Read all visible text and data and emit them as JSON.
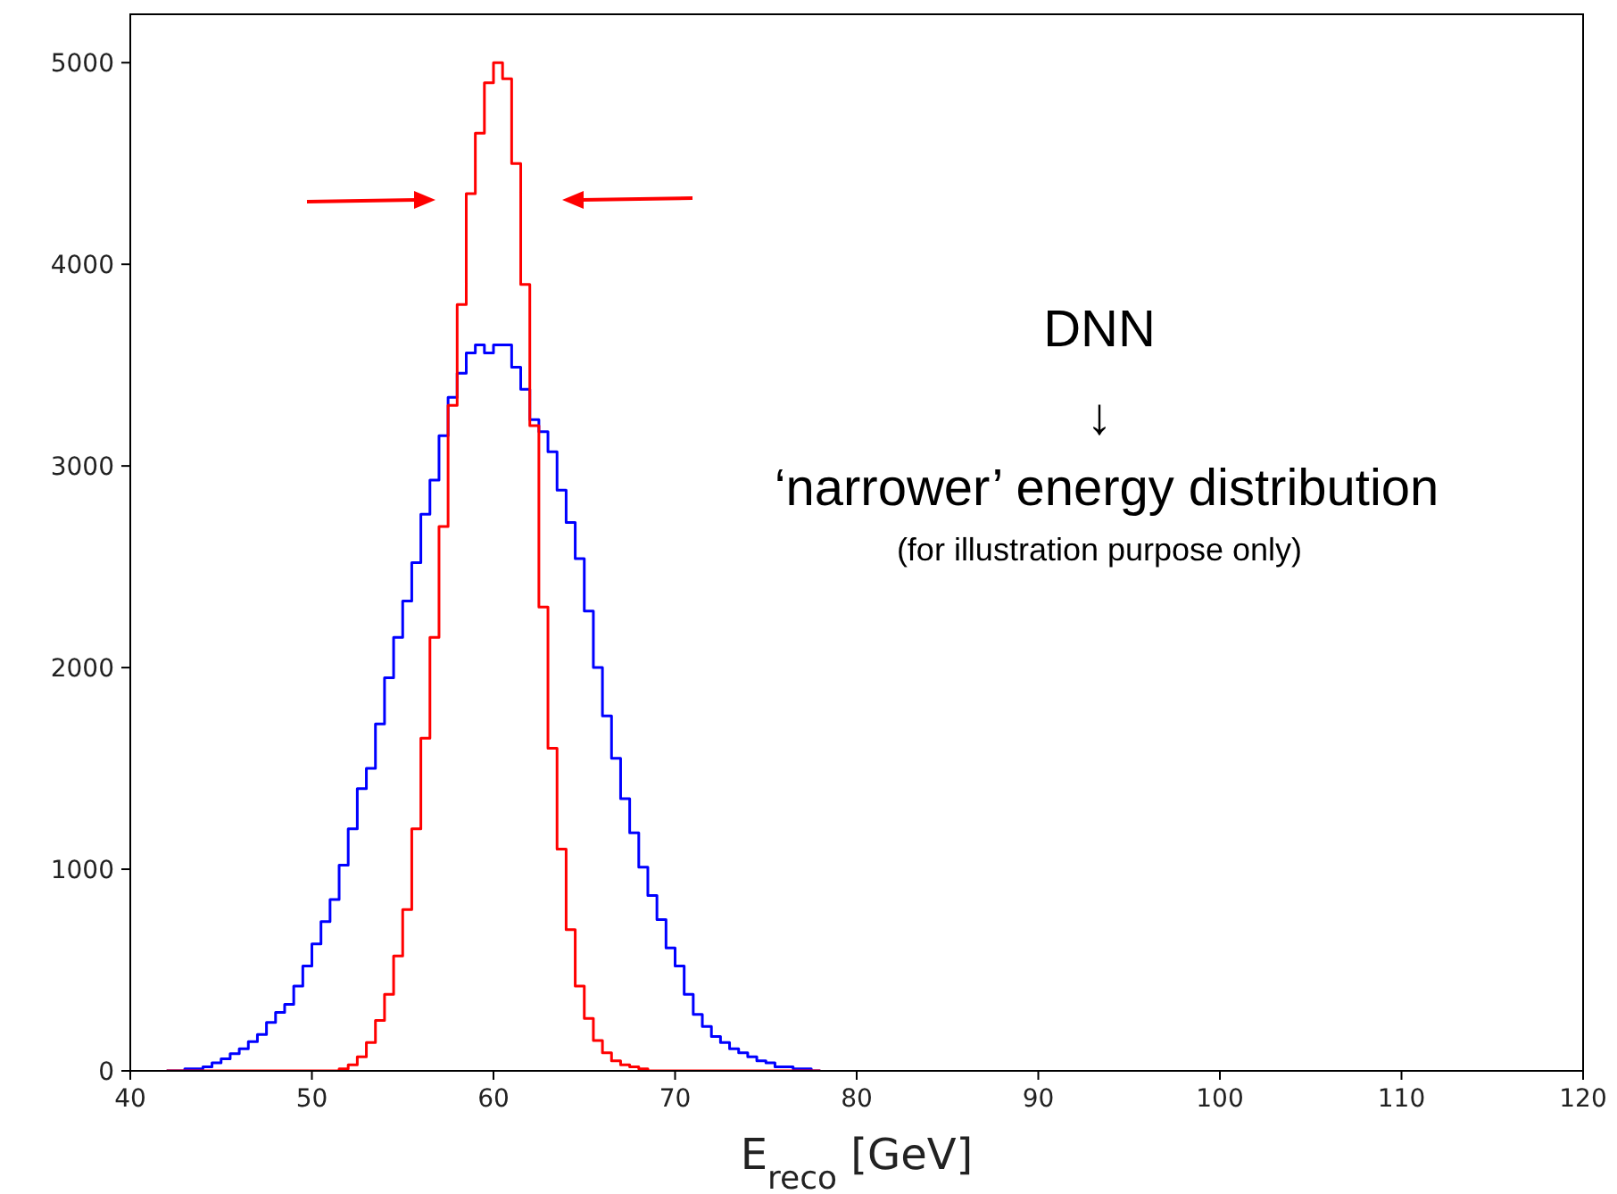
{
  "chart_data": {
    "type": "histogram",
    "xlabel": "E$_{reco}$ [GeV]",
    "bins": [
      42,
      42.5,
      43,
      43.5,
      44,
      44.5,
      45,
      45.5,
      46,
      46.5,
      47,
      47.5,
      48,
      48.5,
      49,
      49.5,
      50,
      50.5,
      51,
      51.5,
      52,
      52.5,
      53,
      53.5,
      54,
      54.5,
      55,
      55.5,
      56,
      56.5,
      57,
      57.5,
      58,
      58.5,
      59,
      59.5,
      60,
      60.5,
      61,
      61.5,
      62,
      62.5,
      63,
      63.5,
      64,
      64.5,
      65,
      65.5,
      66,
      66.5,
      67,
      67.5,
      68,
      68.5,
      69,
      69.5,
      70,
      70.5,
      71,
      71.5,
      72,
      72.5,
      73,
      73.5,
      74,
      74.5,
      75,
      75.5,
      76,
      76.5,
      77,
      77.5,
      78
    ],
    "series": [
      {
        "color": "#0000ff",
        "values": [
          0,
          0,
          10,
          10,
          20,
          40,
          60,
          85,
          110,
          145,
          180,
          240,
          290,
          330,
          420,
          520,
          630,
          740,
          850,
          1020,
          1200,
          1400,
          1500,
          1720,
          1950,
          2150,
          2330,
          2520,
          2760,
          2930,
          3150,
          3340,
          3460,
          3560,
          3600,
          3560,
          3600,
          3600,
          3490,
          3380,
          3230,
          3170,
          3070,
          2880,
          2720,
          2540,
          2280,
          2000,
          1760,
          1550,
          1350,
          1180,
          1010,
          870,
          750,
          610,
          520,
          380,
          280,
          220,
          170,
          140,
          110,
          90,
          70,
          50,
          40,
          20,
          20,
          10,
          10,
          0
        ]
      },
      {
        "color": "#ff0000",
        "values": [
          0,
          0,
          0,
          0,
          0,
          0,
          0,
          0,
          0,
          0,
          0,
          0,
          0,
          0,
          0,
          0,
          0,
          0,
          0,
          10,
          30,
          70,
          140,
          250,
          380,
          570,
          800,
          1200,
          1650,
          2150,
          2700,
          3300,
          3800,
          4350,
          4650,
          4900,
          5000,
          4920,
          4500,
          3900,
          3200,
          2300,
          1600,
          1100,
          700,
          420,
          260,
          150,
          90,
          50,
          30,
          20,
          10,
          0,
          0,
          0,
          0,
          0,
          0,
          0,
          0,
          0,
          0,
          0,
          0,
          0,
          0,
          0,
          0,
          0,
          0,
          0
        ]
      }
    ],
    "xlim": [
      40,
      120
    ],
    "xticks": [
      40,
      50,
      60,
      70,
      80,
      90,
      100,
      110,
      120
    ],
    "ylim": [
      0,
      5240
    ],
    "yticks": [
      0,
      1000,
      2000,
      3000,
      4000,
      5000
    ],
    "grid": false,
    "annotations": [
      "DNN",
      "↓",
      "‘narrower’ energy distribution",
      "(for illustration purpose only)"
    ]
  }
}
